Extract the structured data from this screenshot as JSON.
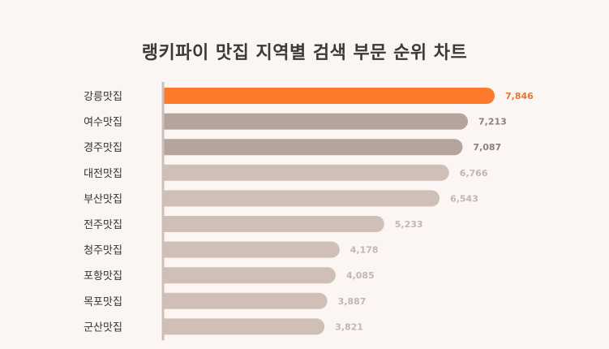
{
  "chart_data": {
    "type": "bar",
    "orientation": "horizontal",
    "title": "랭키파이 맛집 지역별 검색 부문 순위 차트",
    "categories": [
      "강릉맛집",
      "여수맛집",
      "경주맛집",
      "대전맛집",
      "부산맛집",
      "전주맛집",
      "청주맛집",
      "포항맛집",
      "목포맛집",
      "군산맛집"
    ],
    "values": [
      7846,
      7213,
      7087,
      6766,
      6543,
      5233,
      4178,
      4085,
      3887,
      3821
    ],
    "value_labels": [
      "7,846",
      "7,213",
      "7,087",
      "6,766",
      "6,543",
      "5,233",
      "4,178",
      "4,085",
      "3,887",
      "3,821"
    ],
    "xlim": [
      0,
      7846
    ],
    "grid": false,
    "legend": "none",
    "colors": {
      "highlight": "#fd7a2c",
      "mid": "#b4a49b",
      "light": "#cfbfb6",
      "axis": "#cdbfb8",
      "category_text": "#333333",
      "highlight_label": "#e8732c",
      "mid_label": "#8c7f79",
      "light_label": "#c4b5ad"
    },
    "tiers": [
      "highlight",
      "mid",
      "mid",
      "light",
      "light",
      "light",
      "light",
      "light",
      "light",
      "light"
    ]
  }
}
